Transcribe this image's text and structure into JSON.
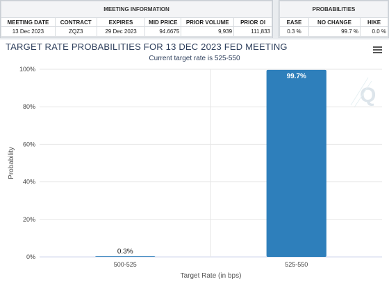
{
  "meeting_info": {
    "section_title": "MEETING INFORMATION",
    "headers": [
      "MEETING DATE",
      "CONTRACT",
      "EXPIRES",
      "MID PRICE",
      "PRIOR VOLUME",
      "PRIOR OI"
    ],
    "row": [
      "13 Dec 2023",
      "ZQZ3",
      "29 Dec 2023",
      "94.6675",
      "9,939",
      "111,833"
    ]
  },
  "probabilities": {
    "section_title": "PROBABILITIES",
    "headers": [
      "EASE",
      "NO CHANGE",
      "HIKE"
    ],
    "row": [
      "0.3 %",
      "99.7 %",
      "0.0 %"
    ]
  },
  "chart_data": {
    "type": "bar",
    "title": "TARGET RATE PROBABILITIES FOR 13 DEC 2023 FED MEETING",
    "subtitle": "Current target rate is 525-550",
    "xlabel": "Target Rate (in bps)",
    "ylabel": "Probability",
    "categories": [
      "500-525",
      "525-550"
    ],
    "values": [
      0.3,
      99.7
    ],
    "data_labels": [
      "0.3%",
      "99.7%"
    ],
    "ylim": [
      0,
      100
    ],
    "yticks": [
      0,
      20,
      40,
      60,
      80,
      100
    ],
    "ytick_labels": [
      "0%",
      "20%",
      "40%",
      "60%",
      "80%",
      "100%"
    ],
    "grid": true,
    "bar_color": "#2e7fbb"
  },
  "icons": {
    "menu": "hamburger-menu-icon",
    "watermark": "q-logo-icon"
  }
}
